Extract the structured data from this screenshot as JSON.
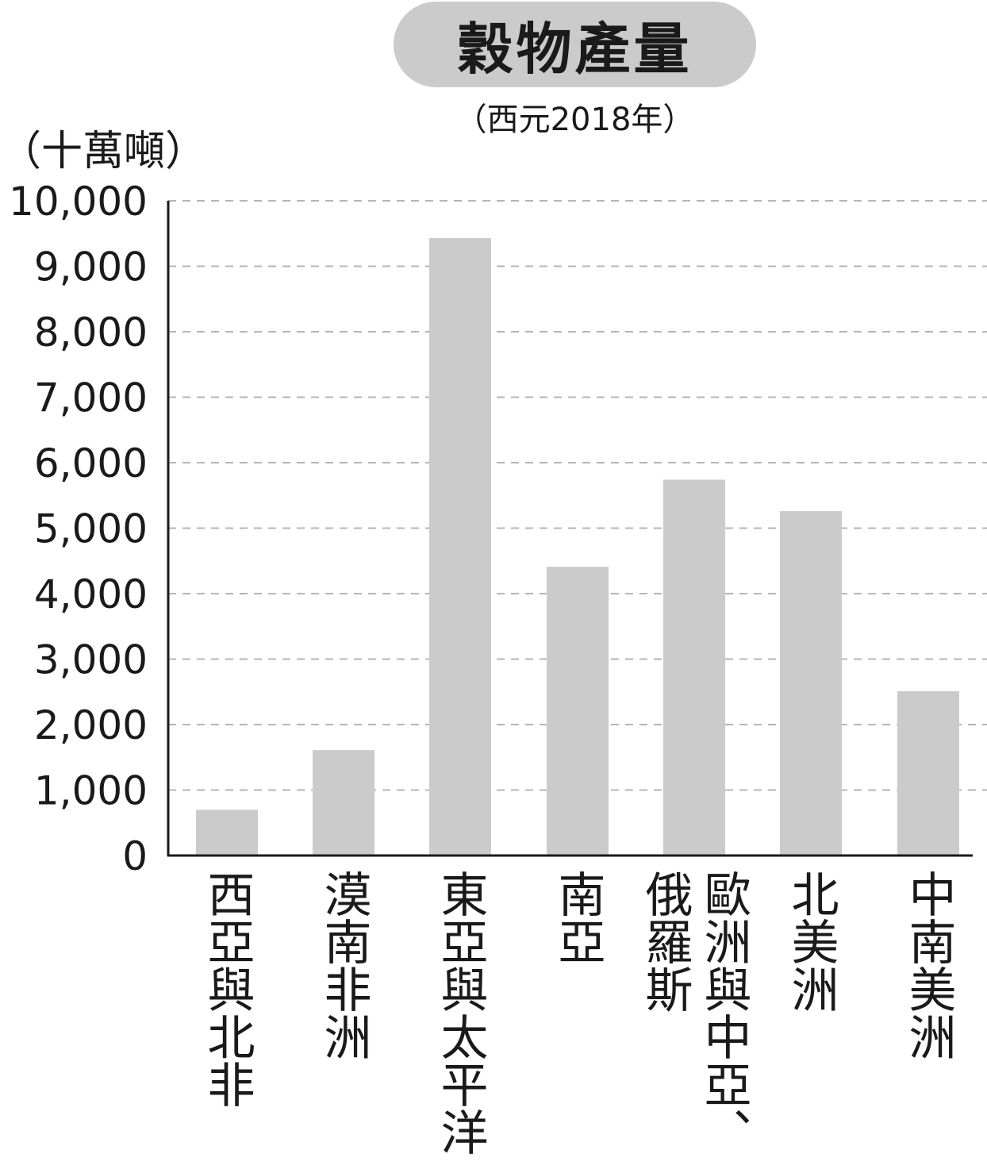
{
  "chart_data": {
    "type": "bar",
    "title": "穀物產量",
    "subtitle": "（西元2018年）",
    "ylabel": "（十萬噸）",
    "xlabel": "",
    "ylim": [
      0,
      10000
    ],
    "yticks": [
      "0",
      "1,000",
      "2,000",
      "3,000",
      "4,000",
      "5,000",
      "6,000",
      "7,000",
      "8,000",
      "9,000",
      "10,000"
    ],
    "grid": "horizontal-dashed",
    "categories": [
      "西亞與北非",
      "漠南非洲",
      "東亞與太平洋",
      "南亞",
      "俄羅斯",
      "歐洲與中亞、",
      "北美洲",
      "中南美洲"
    ],
    "values": [
      700,
      1610,
      9430,
      4410,
      5740,
      5740,
      5260,
      2510
    ],
    "bar_color": "#cbcbcb"
  }
}
